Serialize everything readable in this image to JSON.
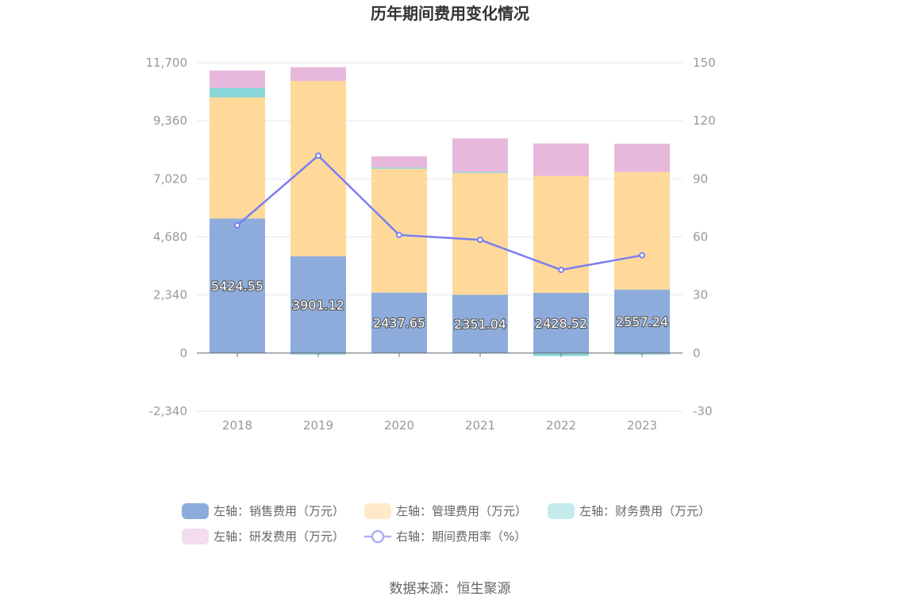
{
  "chart_data": {
    "type": "bar",
    "stacked": true,
    "title": "历年期间费用变化情况",
    "categories": [
      "2018",
      "2019",
      "2020",
      "2021",
      "2022",
      "2023"
    ],
    "left_axis": {
      "ticks": [
        "-2,340",
        "0",
        "2,340",
        "4,680",
        "7,020",
        "9,360",
        "11,700"
      ],
      "ylim": [
        -2340,
        11700
      ]
    },
    "right_axis": {
      "ticks": [
        "-30",
        "0",
        "30",
        "60",
        "90",
        "120",
        "150"
      ],
      "ylim": [
        -30,
        150
      ]
    },
    "series": [
      {
        "name": "左轴：销售费用（万元）",
        "axis": "left",
        "color": "#8eacdb",
        "values": [
          5424.55,
          3901.12,
          2437.65,
          2351.04,
          2428.52,
          2557.24
        ]
      },
      {
        "name": "左轴：管理费用（万元）",
        "axis": "left",
        "color": "#ffd99a",
        "values": [
          4880,
          7060,
          4990,
          4910,
          4710,
          4740
        ]
      },
      {
        "name": "左轴：财务费用（万元）",
        "axis": "left",
        "color": "#88d6d8",
        "values": [
          380,
          -60,
          50,
          40,
          -120,
          -60
        ]
      },
      {
        "name": "左轴：研发费用（万元）",
        "axis": "left",
        "color": "#e8b8dc",
        "values": [
          700,
          560,
          450,
          1350,
          1310,
          1140
        ]
      },
      {
        "name": "右轴：期间费用率（%）",
        "axis": "right",
        "type": "line",
        "color": "#7b7ff0",
        "values": [
          66,
          102,
          61,
          58.5,
          43,
          50.5
        ]
      }
    ],
    "bar_labels": [
      "5424.55",
      "3901.12",
      "2437.65",
      "2351.04",
      "2428.52",
      "2557.24"
    ],
    "legend": [
      {
        "label": "左轴：销售费用（万元）",
        "color": "#8eacdb",
        "shape": "rect"
      },
      {
        "label": "左轴：管理费用（万元）",
        "color": "#ffe9c7",
        "shape": "rect"
      },
      {
        "label": "左轴：财务费用（万元）",
        "color": "#c3ebec",
        "shape": "rect"
      },
      {
        "label": "左轴：研发费用（万元）",
        "color": "#f3dcef",
        "shape": "rect"
      },
      {
        "label": "右轴：期间费用率（%）",
        "color": "#aeb0f5",
        "shape": "line"
      }
    ],
    "source": "数据来源：恒生聚源"
  }
}
